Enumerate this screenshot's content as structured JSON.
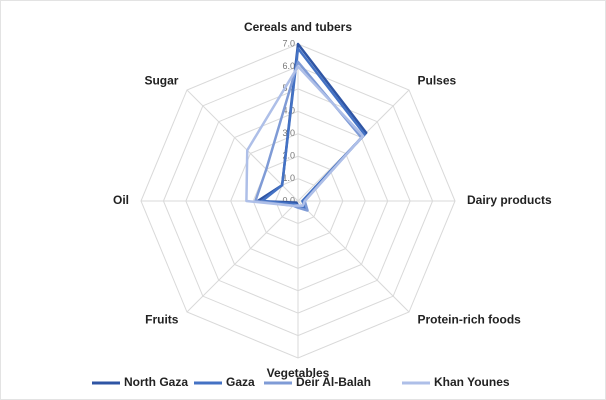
{
  "chart_data": {
    "type": "radar",
    "categories": [
      "Cereals and tubers",
      "Pulses",
      "Dairy products",
      "Protein-rich foods",
      "Vegetables",
      "Fruits",
      "Oil",
      "Sugar"
    ],
    "series": [
      {
        "name": "North Gaza",
        "color": "#2f55a4",
        "values": [
          7.0,
          4.3,
          0.2,
          0.5,
          0.2,
          0.1,
          1.8,
          1.0
        ]
      },
      {
        "name": "Gaza",
        "color": "#4472c4",
        "values": [
          6.8,
          4.2,
          0.2,
          0.5,
          0.2,
          0.2,
          1.6,
          1.0
        ]
      },
      {
        "name": "Deir Al-Balah",
        "color": "#7f9bd6",
        "values": [
          6.2,
          4.0,
          0.3,
          0.6,
          0.3,
          0.3,
          1.9,
          2.0
        ]
      },
      {
        "name": "Khan Younes",
        "color": "#aebfe8",
        "values": [
          6.0,
          4.1,
          0.3,
          0.3,
          0.2,
          0.3,
          2.3,
          3.2
        ]
      }
    ],
    "rlim": [
      0,
      7
    ],
    "rticks": [
      {
        "value": 0,
        "label": "0.0"
      },
      {
        "value": 1,
        "label": "1.0"
      },
      {
        "value": 2,
        "label": "2.0"
      },
      {
        "value": 3,
        "label": "3.0"
      },
      {
        "value": 4,
        "label": "4.0"
      },
      {
        "value": 5,
        "label": "5.0"
      },
      {
        "value": 6,
        "label": "6.0"
      },
      {
        "value": 7,
        "label": "7.0"
      }
    ],
    "grid": true,
    "legend": "bottom"
  }
}
